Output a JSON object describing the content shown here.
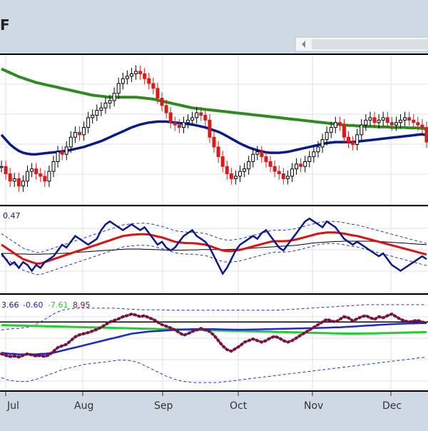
{
  "header": {
    "title": "F"
  },
  "colors": {
    "frame_bg": "#cfd9e3",
    "panel_bg": "#ffffff",
    "grid": "#dde3ea",
    "candle_up": "#000000",
    "candle_down": "#d81b1b",
    "ma_long": "#2e8b1e",
    "ma_short": "#0a1a8c",
    "ind_line": "#0a1a8c",
    "ind_signal": "#e01010",
    "ind_mid": "#000000",
    "ind_band": "#2233cc",
    "osc_dot": "#7a1240",
    "osc_blue": "#1a2ad0",
    "osc_green": "#1fd12a",
    "osc_band": "#2233cc"
  },
  "chart_data": [
    {
      "type": "candlestick",
      "x_ticks": [
        "Jul",
        "Aug",
        "Sep",
        "Oct",
        "Nov",
        "Dec"
      ],
      "grid": true,
      "closes": [
        10.6,
        10.45,
        10.3,
        10.35,
        10.2,
        10.3,
        10.5,
        10.55,
        10.45,
        10.4,
        10.3,
        10.5,
        10.7,
        10.9,
        10.85,
        11.0,
        11.2,
        11.3,
        11.25,
        11.4,
        11.6,
        11.65,
        11.75,
        11.8,
        11.9,
        11.95,
        12.1,
        12.3,
        12.4,
        12.45,
        12.5,
        12.55,
        12.5,
        12.4,
        12.3,
        12.2,
        12.0,
        11.85,
        11.7,
        11.5,
        11.45,
        11.4,
        11.5,
        11.55,
        11.6,
        11.7,
        11.65,
        11.55,
        11.2,
        11.0,
        10.8,
        10.6,
        10.45,
        10.35,
        10.4,
        10.5,
        10.55,
        10.7,
        10.85,
        10.9,
        10.8,
        10.7,
        10.6,
        10.5,
        10.45,
        10.35,
        10.4,
        10.55,
        10.65,
        10.6,
        10.7,
        10.8,
        10.9,
        11.0,
        11.15,
        11.3,
        11.4,
        11.5,
        11.45,
        11.2,
        11.1,
        11.05,
        11.25,
        11.45,
        11.55,
        11.6,
        11.5,
        11.55,
        11.6,
        11.5,
        11.45,
        11.5,
        11.55,
        11.6,
        11.55,
        11.5,
        11.45,
        11.4,
        11.1
      ],
      "ma_long": [
        12.6,
        12.56,
        12.52,
        12.48,
        12.44,
        12.41,
        12.38,
        12.35,
        12.32,
        12.3,
        12.28,
        12.26,
        12.24,
        12.22,
        12.2,
        12.18,
        12.16,
        12.14,
        12.12,
        12.1,
        12.08,
        12.06,
        12.05,
        12.04,
        12.03,
        12.02,
        12.02,
        12.02,
        12.02,
        12.02,
        12.02,
        12.02,
        12.01,
        12.0,
        11.99,
        11.98,
        11.96,
        11.94,
        11.92,
        11.9,
        11.88,
        11.86,
        11.84,
        11.82,
        11.8,
        11.79,
        11.78,
        11.77,
        11.76,
        11.75,
        11.74,
        11.73,
        11.72,
        11.71,
        11.7,
        11.69,
        11.68,
        11.67,
        11.66,
        11.65,
        11.64,
        11.63,
        11.62,
        11.61,
        11.6,
        11.59,
        11.58,
        11.57,
        11.56,
        11.55,
        11.54,
        11.53,
        11.52,
        11.51,
        11.5,
        11.49,
        11.48,
        11.47,
        11.46,
        11.45,
        11.44,
        11.44,
        11.43,
        11.43,
        11.42,
        11.42,
        11.42,
        11.41,
        11.41,
        11.41,
        11.4,
        11.4,
        11.4,
        11.4,
        11.39,
        11.39,
        11.39,
        11.38,
        11.37
      ],
      "ma_short": [
        11.25,
        11.15,
        11.05,
        10.98,
        10.92,
        10.88,
        10.86,
        10.85,
        10.85,
        10.86,
        10.87,
        10.88,
        10.89,
        10.9,
        10.91,
        10.92,
        10.94,
        10.96,
        10.98,
        11.0,
        11.03,
        11.06,
        11.09,
        11.12,
        11.16,
        11.2,
        11.24,
        11.28,
        11.32,
        11.36,
        11.4,
        11.43,
        11.46,
        11.48,
        11.5,
        11.51,
        11.52,
        11.52,
        11.52,
        11.51,
        11.5,
        11.49,
        11.48,
        11.47,
        11.46,
        11.44,
        11.42,
        11.4,
        11.37,
        11.34,
        11.31,
        11.27,
        11.22,
        11.17,
        11.12,
        11.07,
        11.03,
        10.99,
        10.96,
        10.93,
        10.91,
        10.89,
        10.88,
        10.88,
        10.88,
        10.89,
        10.9,
        10.92,
        10.94,
        10.96,
        10.98,
        11.0,
        11.02,
        11.04,
        11.06,
        11.08,
        11.09,
        11.1,
        11.1,
        11.1,
        11.1,
        11.1,
        11.11,
        11.12,
        11.13,
        11.14,
        11.15,
        11.16,
        11.17,
        11.18,
        11.19,
        11.2,
        11.21,
        11.22,
        11.23,
        11.24,
        11.25,
        11.26,
        11.24
      ],
      "ylim": [
        9.8,
        12.9
      ]
    },
    {
      "type": "line",
      "legend": [
        "0.47"
      ],
      "main": [
        0.1,
        -0.1,
        -0.3,
        -0.2,
        -0.4,
        -0.2,
        -0.3,
        -0.5,
        -0.3,
        -0.4,
        -0.2,
        -0.1,
        0.0,
        0.2,
        0.4,
        0.3,
        0.5,
        0.7,
        0.6,
        0.5,
        0.4,
        0.5,
        0.6,
        0.9,
        1.1,
        1.2,
        1.1,
        1.0,
        0.9,
        1.0,
        1.1,
        1.0,
        0.9,
        1.0,
        0.8,
        0.6,
        0.4,
        0.5,
        0.3,
        0.2,
        0.3,
        0.5,
        0.7,
        0.8,
        0.9,
        0.7,
        0.6,
        0.5,
        0.3,
        0.0,
        -0.3,
        -0.6,
        -0.4,
        -0.1,
        0.2,
        0.4,
        0.5,
        0.6,
        0.7,
        0.6,
        0.8,
        0.9,
        0.7,
        0.5,
        0.3,
        0.2,
        0.4,
        0.6,
        0.8,
        1.0,
        1.2,
        1.3,
        1.2,
        1.1,
        1.0,
        1.2,
        1.1,
        1.0,
        0.8,
        0.6,
        0.5,
        0.4,
        0.5,
        0.4,
        0.3,
        0.2,
        0.1,
        0.0,
        0.1,
        -0.1,
        -0.3,
        -0.4,
        -0.5,
        -0.4,
        -0.3,
        -0.2,
        -0.1,
        0.0,
        -0.1
      ],
      "signal": [
        0.4,
        0.3,
        0.2,
        0.1,
        0.0,
        -0.1,
        -0.15,
        -0.2,
        -0.25,
        -0.25,
        -0.2,
        -0.15,
        -0.1,
        -0.05,
        0.0,
        0.05,
        0.1,
        0.15,
        0.2,
        0.25,
        0.3,
        0.35,
        0.4,
        0.45,
        0.5,
        0.55,
        0.6,
        0.65,
        0.7,
        0.72,
        0.74,
        0.75,
        0.76,
        0.76,
        0.75,
        0.72,
        0.68,
        0.65,
        0.6,
        0.55,
        0.5,
        0.48,
        0.46,
        0.45,
        0.45,
        0.44,
        0.42,
        0.4,
        0.36,
        0.3,
        0.25,
        0.2,
        0.18,
        0.18,
        0.2,
        0.22,
        0.26,
        0.3,
        0.34,
        0.38,
        0.42,
        0.46,
        0.5,
        0.52,
        0.52,
        0.52,
        0.53,
        0.55,
        0.58,
        0.62,
        0.66,
        0.7,
        0.74,
        0.78,
        0.8,
        0.82,
        0.82,
        0.82,
        0.8,
        0.78,
        0.75,
        0.72,
        0.7,
        0.66,
        0.62,
        0.58,
        0.54,
        0.5,
        0.46,
        0.42,
        0.38,
        0.34,
        0.3,
        0.26,
        0.22,
        0.18,
        0.14,
        0.1,
        0.06
      ],
      "mid": [
        0.1,
        0.1,
        0.1,
        0.09,
        0.08,
        0.08,
        0.07,
        0.07,
        0.07,
        0.07,
        0.08,
        0.08,
        0.09,
        0.1,
        0.1,
        0.11,
        0.12,
        0.13,
        0.14,
        0.15,
        0.16,
        0.17,
        0.18,
        0.19,
        0.2,
        0.21,
        0.22,
        0.23,
        0.24,
        0.25,
        0.25,
        0.25,
        0.25,
        0.24,
        0.24,
        0.23,
        0.23,
        0.22,
        0.22,
        0.21,
        0.21,
        0.21,
        0.21,
        0.22,
        0.22,
        0.22,
        0.23,
        0.23,
        0.23,
        0.23,
        0.23,
        0.23,
        0.23,
        0.24,
        0.24,
        0.25,
        0.26,
        0.27,
        0.28,
        0.29,
        0.3,
        0.31,
        0.32,
        0.33,
        0.34,
        0.35,
        0.36,
        0.37,
        0.38,
        0.4,
        0.42,
        0.44,
        0.46,
        0.47,
        0.48,
        0.49,
        0.5,
        0.51,
        0.51,
        0.52,
        0.52,
        0.52,
        0.52,
        0.52,
        0.52,
        0.52,
        0.51,
        0.51,
        0.5,
        0.49,
        0.48,
        0.47,
        0.46,
        0.45,
        0.44,
        0.43,
        0.42,
        0.41,
        0.4
      ],
      "band_width": 0.38,
      "ylim": [
        -1.3,
        1.7
      ]
    },
    {
      "type": "line",
      "legend": [
        "3.66",
        "-0.60",
        "-7.61",
        "8.95"
      ],
      "legend_colors": [
        "#0a1a8c",
        "#1a2ad0",
        "#1fd12a",
        "#7a1240"
      ],
      "dotted": [
        -2.0,
        -2.3,
        -2.5,
        -2.4,
        -2.6,
        -2.3,
        -2.0,
        -2.2,
        -2.4,
        -2.3,
        -2.5,
        -2.2,
        -1.5,
        -0.8,
        -0.5,
        -0.2,
        0.5,
        1.2,
        1.6,
        1.8,
        2.0,
        2.3,
        2.6,
        3.0,
        3.5,
        4.0,
        4.3,
        4.6,
        5.0,
        5.2,
        5.5,
        5.3,
        5.0,
        5.2,
        4.8,
        4.5,
        4.0,
        3.5,
        3.2,
        2.9,
        2.5,
        2.0,
        1.5,
        1.8,
        2.2,
        2.5,
        2.8,
        2.5,
        2.2,
        1.5,
        0.5,
        -0.5,
        -1.2,
        -1.5,
        -1.0,
        -0.5,
        0.2,
        0.5,
        0.8,
        0.5,
        0.2,
        0.5,
        1.0,
        1.3,
        1.0,
        0.5,
        0.2,
        0.5,
        1.0,
        1.5,
        2.0,
        2.5,
        3.0,
        3.5,
        4.0,
        4.5,
        4.2,
        4.0,
        4.5,
        5.0,
        4.8,
        4.2,
        4.6,
        5.0,
        5.2,
        4.8,
        4.5,
        5.0,
        4.8,
        5.2,
        5.5,
        5.0,
        4.5,
        4.2,
        4.0,
        4.2,
        4.3,
        4.0,
        3.8
      ],
      "blue": [
        -1.8,
        -1.9,
        -2.0,
        -2.0,
        -2.1,
        -2.1,
        -2.1,
        -2.1,
        -2.1,
        -2.0,
        -2.0,
        -1.9,
        -1.8,
        -1.6,
        -1.4,
        -1.2,
        -1.0,
        -0.8,
        -0.6,
        -0.4,
        -0.2,
        0.0,
        0.2,
        0.4,
        0.6,
        0.8,
        1.0,
        1.2,
        1.4,
        1.6,
        1.8,
        1.9,
        2.0,
        2.1,
        2.2,
        2.25,
        2.3,
        2.35,
        2.4,
        2.45,
        2.5,
        2.55,
        2.6,
        2.62,
        2.64,
        2.66,
        2.66,
        2.66,
        2.65,
        2.64,
        2.62,
        2.6,
        2.58,
        2.56,
        2.55,
        2.55,
        2.55,
        2.56,
        2.58,
        2.6,
        2.62,
        2.64,
        2.66,
        2.68,
        2.7,
        2.72,
        2.74,
        2.76,
        2.78,
        2.8,
        2.82,
        2.84,
        2.86,
        2.88,
        2.9,
        2.92,
        2.95,
        2.98,
        3.0,
        3.05,
        3.1,
        3.15,
        3.2,
        3.25,
        3.3,
        3.35,
        3.4,
        3.45,
        3.5,
        3.55,
        3.6,
        3.63,
        3.66,
        3.7,
        3.72,
        3.74,
        3.76,
        3.78,
        3.8
      ],
      "green": [
        3.4,
        3.38,
        3.36,
        3.34,
        3.32,
        3.3,
        3.28,
        3.26,
        3.24,
        3.22,
        3.2,
        3.18,
        3.16,
        3.14,
        3.12,
        3.1,
        3.08,
        3.06,
        3.04,
        3.02,
        3.0,
        2.98,
        2.96,
        2.94,
        2.92,
        2.9,
        2.88,
        2.86,
        2.84,
        2.82,
        2.8,
        2.78,
        2.76,
        2.74,
        2.72,
        2.7,
        2.68,
        2.66,
        2.64,
        2.62,
        2.6,
        2.58,
        2.56,
        2.54,
        2.52,
        2.5,
        2.48,
        2.46,
        2.44,
        2.42,
        2.4,
        2.38,
        2.36,
        2.34,
        2.32,
        2.3,
        2.28,
        2.26,
        2.24,
        2.22,
        2.2,
        2.18,
        2.16,
        2.14,
        2.12,
        2.1,
        2.08,
        2.06,
        2.04,
        2.02,
        2.0,
        1.98,
        1.96,
        1.94,
        1.92,
        1.9,
        1.88,
        1.86,
        1.84,
        1.82,
        1.82,
        1.82,
        1.82,
        1.83,
        1.84,
        1.85,
        1.86,
        1.88,
        1.9,
        1.92,
        1.94,
        1.96,
        1.98,
        2.0,
        2.02,
        2.04,
        2.06,
        2.08,
        2.1
      ],
      "band_upper": [
        2.5,
        2.6,
        2.7,
        2.75,
        2.8,
        2.9,
        3.0,
        3.3,
        3.6,
        4.0,
        4.5,
        5.0,
        5.5,
        5.9,
        6.2,
        6.4,
        6.5,
        6.6,
        6.6,
        6.6,
        6.6,
        6.6,
        6.6,
        6.6,
        6.6,
        6.6,
        6.6,
        6.55,
        6.5,
        6.45,
        6.4,
        6.35,
        6.3,
        6.3,
        6.3,
        6.3,
        6.3,
        6.3,
        6.25,
        6.2,
        6.2,
        6.2,
        6.2,
        6.2,
        6.2,
        6.2,
        6.2,
        6.2,
        6.2,
        6.2,
        6.2,
        6.2,
        6.2,
        6.2,
        6.2,
        6.2,
        6.2,
        6.2,
        6.2,
        6.2,
        6.2,
        6.2,
        6.2,
        6.2,
        6.25,
        6.3,
        6.35,
        6.4,
        6.45,
        6.5,
        6.55,
        6.6,
        6.65,
        6.7,
        6.75,
        6.8,
        6.85,
        6.9,
        6.95,
        7.0,
        7.05,
        7.1,
        7.15,
        7.2,
        7.25,
        7.25,
        7.25,
        7.25,
        7.25,
        7.25,
        7.25,
        7.25,
        7.25,
        7.25,
        7.25,
        7.25,
        7.25,
        7.25,
        7.25
      ],
      "band_lower": [
        -6.5,
        -6.8,
        -7.0,
        -7.1,
        -7.2,
        -7.2,
        -7.2,
        -7.0,
        -6.8,
        -6.5,
        -6.2,
        -5.9,
        -5.6,
        -5.3,
        -5.0,
        -4.8,
        -4.6,
        -4.4,
        -4.2,
        -4.0,
        -3.9,
        -3.8,
        -3.7,
        -3.6,
        -3.5,
        -3.4,
        -3.3,
        -3.2,
        -3.2,
        -3.2,
        -3.3,
        -3.5,
        -3.8,
        -4.2,
        -4.6,
        -5.0,
        -5.4,
        -5.8,
        -6.2,
        -6.5,
        -6.8,
        -7.0,
        -7.2,
        -7.3,
        -7.4,
        -7.4,
        -7.4,
        -7.4,
        -7.4,
        -7.4,
        -7.4,
        -7.3,
        -7.2,
        -7.1,
        -7.0,
        -6.9,
        -6.8,
        -6.7,
        -6.6,
        -6.5,
        -6.4,
        -6.3,
        -6.2,
        -6.1,
        -6.0,
        -5.9,
        -5.8,
        -5.7,
        -5.6,
        -5.5,
        -5.4,
        -5.3,
        -5.2,
        -5.1,
        -5.0,
        -4.9,
        -4.8,
        -4.7,
        -4.6,
        -4.5,
        -4.4,
        -4.3,
        -4.2,
        -4.1,
        -4.0,
        -3.9,
        -3.8,
        -3.7,
        -3.6,
        -3.5,
        -3.4,
        -3.3,
        -3.2,
        -3.1,
        -3.0,
        -2.9,
        -2.8,
        -2.7,
        -2.6
      ],
      "level": 4.0,
      "ylim": [
        -9,
        9
      ]
    }
  ]
}
